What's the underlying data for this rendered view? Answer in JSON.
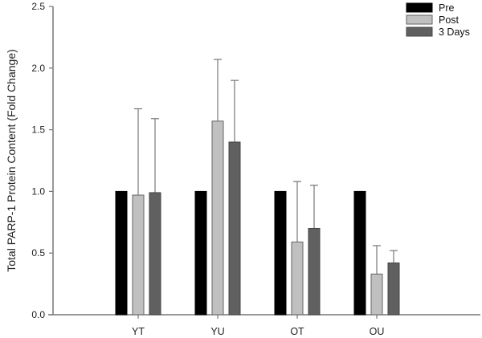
{
  "chart_data": {
    "type": "bar",
    "title": "",
    "xlabel": "",
    "ylabel": "Total PARP-1 Protein Content (Fold Change)",
    "ylim": [
      0,
      2.5
    ],
    "yticks": [
      "0.0",
      "0.5",
      "1.0",
      "1.5",
      "2.0",
      "2.5"
    ],
    "grid": false,
    "legend_position": "top-right",
    "categories": [
      "YT",
      "YU",
      "OT",
      "OU"
    ],
    "series": [
      {
        "name": "Pre",
        "color": "#000000",
        "values": [
          1.0,
          1.0,
          1.0,
          1.0
        ],
        "error_upper": [
          0,
          0,
          0,
          0
        ]
      },
      {
        "name": "Post",
        "color": "#c0c0c0",
        "values": [
          0.97,
          1.57,
          0.59,
          0.33
        ],
        "error_upper": [
          0.7,
          0.5,
          0.49,
          0.23
        ]
      },
      {
        "name": "3 Days",
        "color": "#606060",
        "values": [
          0.99,
          1.4,
          0.7,
          0.42
        ],
        "error_upper": [
          0.6,
          0.5,
          0.35,
          0.1
        ]
      }
    ]
  }
}
